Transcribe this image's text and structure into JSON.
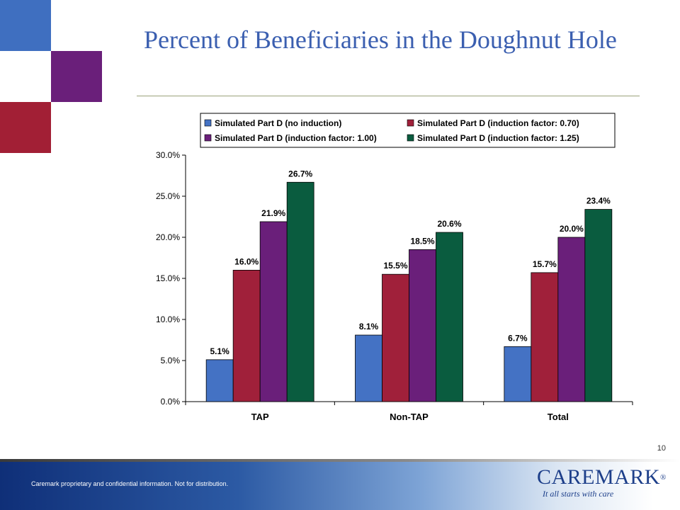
{
  "slide": {
    "title": "Percent of Beneficiaries in the Doughnut Hole",
    "page_number": "10",
    "footer_text": "Caremark proprietary and confidential information. Not for distribution.",
    "logo_name": "CAREMARK",
    "logo_reg": "®",
    "logo_tagline": "It all starts with care"
  },
  "colors": {
    "title": "#3b5fb0",
    "square_blue": "#3f6fc0",
    "square_purple": "#6a1f7a",
    "square_red": "#a21f35"
  },
  "chart_data": {
    "type": "bar",
    "categories": [
      "TAP",
      "Non-TAP",
      "Total"
    ],
    "series": [
      {
        "name": "Simulated Part D (no induction)",
        "values": [
          5.1,
          8.1,
          6.7
        ],
        "color": "#4472c4"
      },
      {
        "name": "Simulated Part D (induction factor: 0.70)",
        "values": [
          16.0,
          15.5,
          15.7
        ],
        "color": "#a0203a"
      },
      {
        "name": "Simulated Part D (induction factor: 1.00)",
        "values": [
          21.9,
          18.5,
          20.0
        ],
        "color": "#6a1f7a"
      },
      {
        "name": "Simulated Part D (induction factor: 1.25)",
        "values": [
          26.7,
          20.6,
          23.4
        ],
        "color": "#0a5c3f"
      }
    ],
    "data_labels": [
      [
        "5.1%",
        "8.1%",
        "6.7%"
      ],
      [
        "16.0%",
        "15.5%",
        "15.7%"
      ],
      [
        "21.9%",
        "18.5%",
        "20.0%"
      ],
      [
        "26.7%",
        "20.6%",
        "23.4%"
      ]
    ],
    "yticks": [
      "0.0%",
      "5.0%",
      "10.0%",
      "15.0%",
      "20.0%",
      "25.0%",
      "30.0%"
    ],
    "ylim": [
      0,
      30
    ],
    "legend_position": "top",
    "grid": false,
    "title": "",
    "xlabel": "",
    "ylabel": ""
  }
}
